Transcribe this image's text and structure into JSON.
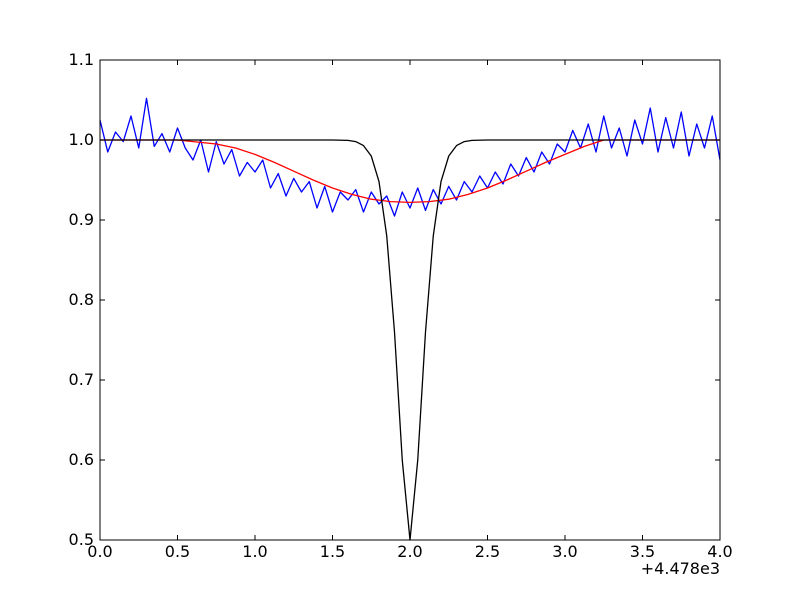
{
  "chart_data": {
    "type": "line",
    "title": "",
    "xlabel": "",
    "ylabel": "",
    "x_offset_label": "+4.478e3",
    "xlim": [
      0.0,
      4.0
    ],
    "ylim": [
      0.5,
      1.1
    ],
    "xticks": [
      "0.0",
      "0.5",
      "1.0",
      "1.5",
      "2.0",
      "2.5",
      "3.0",
      "3.5",
      "4.0"
    ],
    "yticks": [
      "0.5",
      "0.6",
      "0.7",
      "0.8",
      "0.9",
      "1.0",
      "1.1"
    ],
    "grid": false,
    "series": [
      {
        "color": "#0000ff",
        "x": [
          0.0,
          0.05,
          0.1,
          0.15,
          0.2,
          0.25,
          0.3,
          0.35,
          0.4,
          0.45,
          0.5,
          0.55,
          0.6,
          0.65,
          0.7,
          0.75,
          0.8,
          0.85,
          0.9,
          0.95,
          1.0,
          1.05,
          1.1,
          1.15,
          1.2,
          1.25,
          1.3,
          1.35,
          1.4,
          1.45,
          1.5,
          1.55,
          1.6,
          1.65,
          1.7,
          1.75,
          1.8,
          1.85,
          1.9,
          1.95,
          2.0,
          2.05,
          2.1,
          2.15,
          2.2,
          2.25,
          2.3,
          2.35,
          2.4,
          2.45,
          2.5,
          2.55,
          2.6,
          2.65,
          2.7,
          2.75,
          2.8,
          2.85,
          2.9,
          2.95,
          3.0,
          3.05,
          3.1,
          3.15,
          3.2,
          3.25,
          3.3,
          3.35,
          3.4,
          3.45,
          3.5,
          3.55,
          3.6,
          3.65,
          3.7,
          3.75,
          3.8,
          3.85,
          3.9,
          3.95,
          4.0
        ],
        "y": [
          1.025,
          0.985,
          1.01,
          0.998,
          1.03,
          0.99,
          1.052,
          0.992,
          1.008,
          0.985,
          1.015,
          0.99,
          0.975,
          1.0,
          0.96,
          0.998,
          0.97,
          0.988,
          0.955,
          0.972,
          0.96,
          0.975,
          0.94,
          0.958,
          0.93,
          0.952,
          0.935,
          0.948,
          0.915,
          0.942,
          0.91,
          0.935,
          0.925,
          0.938,
          0.91,
          0.935,
          0.92,
          0.93,
          0.905,
          0.935,
          0.915,
          0.94,
          0.912,
          0.938,
          0.92,
          0.942,
          0.925,
          0.948,
          0.935,
          0.955,
          0.94,
          0.96,
          0.945,
          0.97,
          0.955,
          0.978,
          0.96,
          0.985,
          0.97,
          0.995,
          0.985,
          1.012,
          0.99,
          1.02,
          0.985,
          1.03,
          0.99,
          1.015,
          0.98,
          1.025,
          0.995,
          1.04,
          0.985,
          1.028,
          0.99,
          1.035,
          0.98,
          1.02,
          0.99,
          1.03,
          0.975
        ]
      },
      {
        "color": "#ff0000",
        "x": [
          0.0,
          0.25,
          0.5,
          0.75,
          0.875,
          1.0,
          1.125,
          1.25,
          1.375,
          1.5,
          1.625,
          1.75,
          1.875,
          2.0,
          2.125,
          2.25,
          2.375,
          2.5,
          2.625,
          2.75,
          2.875,
          3.0,
          3.125,
          3.25,
          3.5,
          3.75,
          4.0
        ],
        "y": [
          1.0,
          1.0,
          1.0,
          0.995,
          0.99,
          0.982,
          0.972,
          0.961,
          0.95,
          0.94,
          0.932,
          0.926,
          0.923,
          0.922,
          0.923,
          0.926,
          0.932,
          0.94,
          0.95,
          0.961,
          0.972,
          0.982,
          0.992,
          1.0,
          1.0,
          1.0,
          1.0
        ]
      },
      {
        "color": "#000000",
        "x": [
          0.0,
          1.5,
          1.6,
          1.65,
          1.7,
          1.75,
          1.8,
          1.85,
          1.9,
          1.95,
          2.0,
          2.05,
          2.1,
          2.15,
          2.2,
          2.25,
          2.3,
          2.35,
          2.4,
          2.5,
          4.0
        ],
        "y": [
          1.0,
          1.0,
          0.9995,
          0.998,
          0.993,
          0.98,
          0.948,
          0.88,
          0.76,
          0.6,
          0.5,
          0.6,
          0.76,
          0.88,
          0.948,
          0.98,
          0.993,
          0.998,
          0.9995,
          1.0,
          1.0
        ]
      }
    ]
  }
}
